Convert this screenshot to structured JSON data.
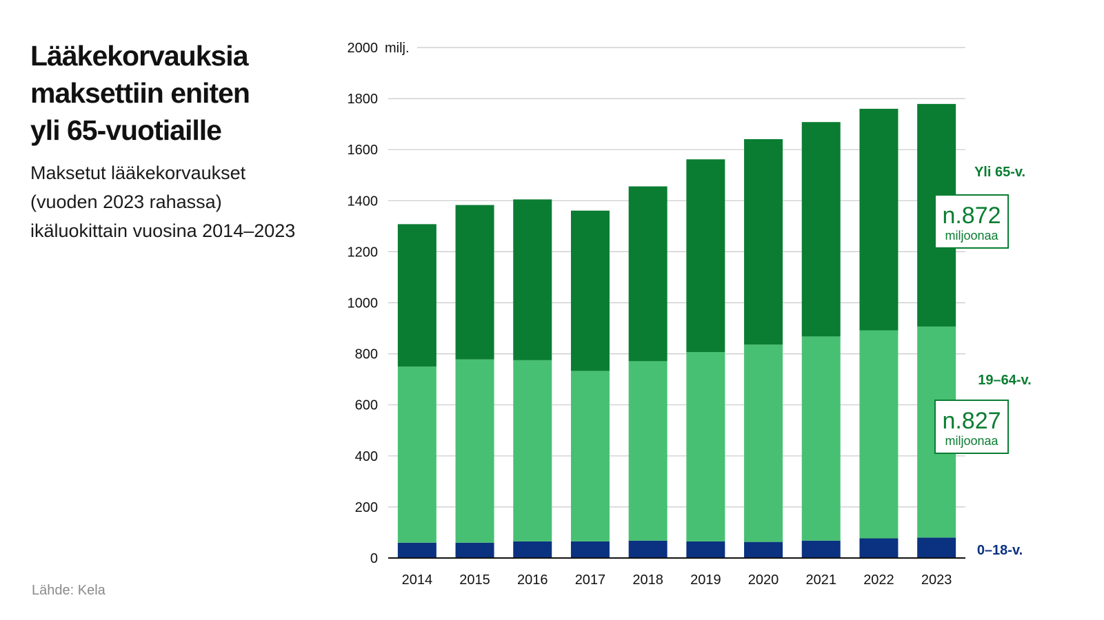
{
  "title_lines": [
    "Lääkekorvauksia",
    "maksettiin eniten",
    "yli 65-vuotiaille"
  ],
  "subtitle_lines": [
    "Maksetut lääkekorvaukset",
    "(vuoden 2023 rahassa)",
    "ikäluokittain vuosina 2014–2023"
  ],
  "source": "Lähde: Kela",
  "colors": {
    "young": "#0b3280",
    "mid": "#48c073",
    "old": "#0a7d32",
    "grid": "#c8c8c8",
    "axis": "#111111"
  },
  "chart_data": {
    "type": "bar",
    "stacked": true,
    "categories": [
      "2014",
      "2015",
      "2016",
      "2017",
      "2018",
      "2019",
      "2020",
      "2021",
      "2022",
      "2023"
    ],
    "series": [
      {
        "name": "0–18-v.",
        "label": "0–18-v.",
        "values": [
          60,
          60,
          65,
          65,
          68,
          65,
          63,
          68,
          77,
          80
        ]
      },
      {
        "name": "19–64-v.",
        "label": "19–64-v.",
        "values": [
          690,
          718,
          710,
          668,
          703,
          742,
          773,
          800,
          815,
          827
        ]
      },
      {
        "name": "Yli 65-v.",
        "label": "Yli 65-v.",
        "values": [
          558,
          605,
          630,
          628,
          685,
          755,
          805,
          840,
          868,
          872
        ]
      }
    ],
    "ylim": [
      0,
      2000
    ],
    "yticks": [
      "0",
      "200",
      "400",
      "600",
      "800",
      "1000",
      "1200",
      "1400",
      "1600",
      "1800",
      "2000"
    ],
    "yunit": "milj.",
    "callouts": [
      {
        "series": "Yli 65-v.",
        "value_text": "n.872",
        "unit_text": "miljoonaa"
      },
      {
        "series": "19–64-v.",
        "value_text": "n.827",
        "unit_text": "miljoonaa"
      }
    ]
  }
}
